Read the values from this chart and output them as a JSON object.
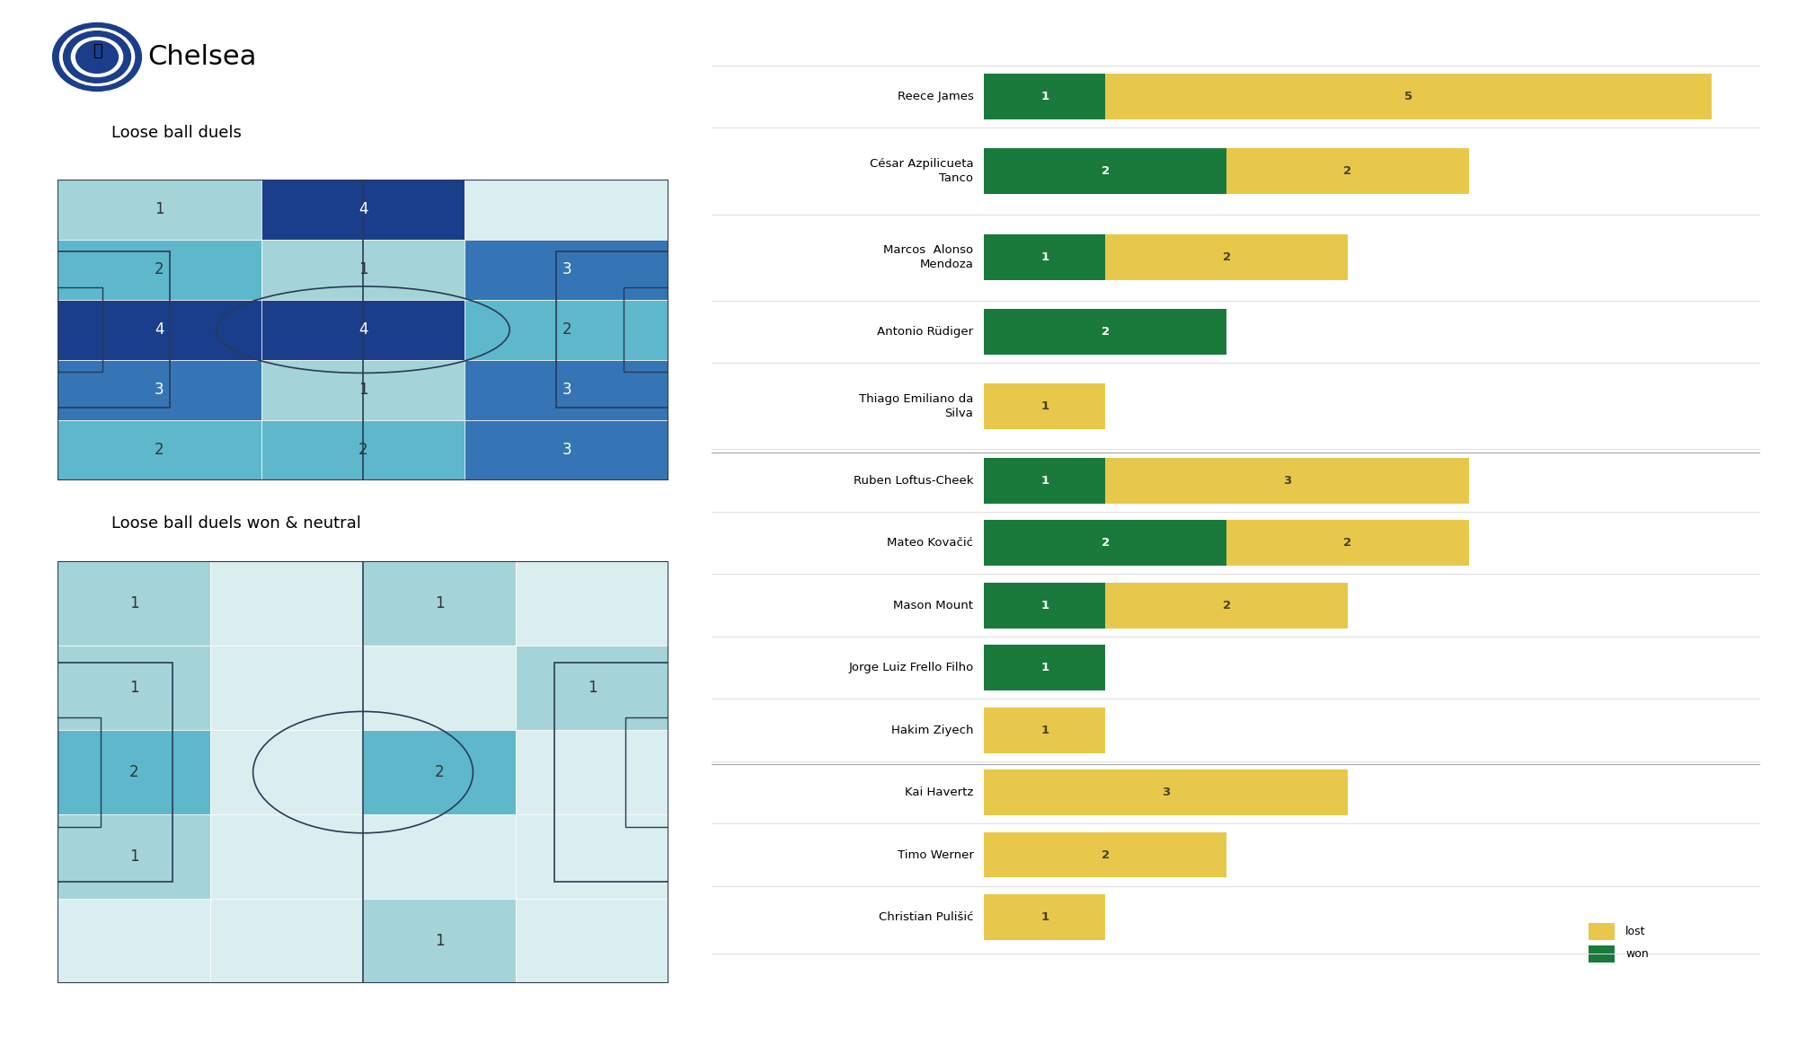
{
  "title": "Chelsea",
  "subtitle1": "Loose ball duels",
  "subtitle2": "Loose ball duels won & neutral",
  "heatmap1_grid": [
    [
      1,
      4,
      0
    ],
    [
      2,
      1,
      3
    ],
    [
      4,
      4,
      2
    ],
    [
      3,
      1,
      3
    ],
    [
      2,
      2,
      3
    ]
  ],
  "heatmap2_grid": [
    [
      1,
      0,
      1,
      0
    ],
    [
      1,
      0,
      0,
      1
    ],
    [
      2,
      0,
      2,
      0
    ],
    [
      1,
      0,
      0,
      0
    ],
    [
      0,
      0,
      1,
      0
    ]
  ],
  "heatmap_cmap": [
    "#daeef0",
    "#a4d4d8",
    "#5eb8cc",
    "#3575b5",
    "#1a3e8c"
  ],
  "players": [
    {
      "name": "Reece James",
      "won": 1,
      "lost": 5
    },
    {
      "name": "César Azpilicueta\nTanco",
      "won": 2,
      "lost": 2
    },
    {
      "name": "Marcos  Alonso\nMendoza",
      "won": 1,
      "lost": 2
    },
    {
      "name": "Antonio Rüdiger",
      "won": 2,
      "lost": 0
    },
    {
      "name": "Thiago Emiliano da\nSilva",
      "won": 0,
      "lost": 1
    },
    {
      "name": "Ruben Loftus-Cheek",
      "won": 1,
      "lost": 3
    },
    {
      "name": "Mateo Kovačić",
      "won": 2,
      "lost": 2
    },
    {
      "name": "Mason Mount",
      "won": 1,
      "lost": 2
    },
    {
      "name": "Jorge Luiz Frello Filho",
      "won": 1,
      "lost": 0
    },
    {
      "name": "Hakim Ziyech",
      "won": 0,
      "lost": 1
    },
    {
      "name": "Kai Havertz",
      "won": 0,
      "lost": 3
    },
    {
      "name": "Timo Werner",
      "won": 0,
      "lost": 2
    },
    {
      "name": "Christian Pulišić",
      "won": 0,
      "lost": 1
    }
  ],
  "dividers_after": [
    4,
    9
  ],
  "won_color": "#1a7a3c",
  "lost_color": "#e8c84a",
  "bg_color": "#ffffff",
  "pitch_line_color": "#2a3a55",
  "bar_scale_max": 6,
  "logo_color_outer": "#1a3e8c",
  "logo_color_ring": "#ffffff",
  "logo_color_inner": "#1a3e8c"
}
